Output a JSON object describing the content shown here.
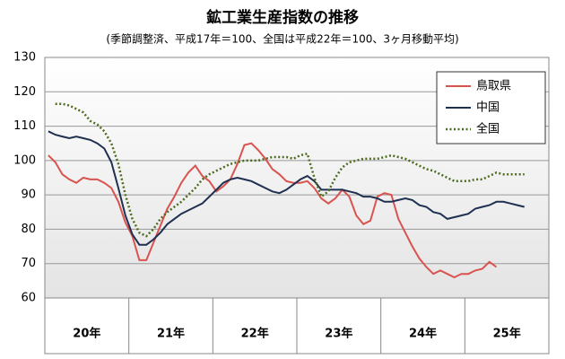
{
  "chart_data": {
    "type": "line",
    "title": "鉱工業生産指数の推移",
    "subtitle": "(季節調整済、平成17年＝100、全国は平成22年＝100、3ヶ月移動平均)",
    "categories": [
      null,
      null,
      null,
      null,
      null,
      "20年",
      null,
      null,
      null,
      null,
      null,
      null,
      null,
      null,
      null,
      null,
      null,
      "21年",
      null,
      null,
      null,
      null,
      null,
      null,
      null,
      null,
      null,
      null,
      null,
      "22年",
      null,
      null,
      null,
      null,
      null,
      null,
      null,
      null,
      null,
      null,
      null,
      "23年",
      null,
      null,
      null,
      null,
      null,
      null,
      null,
      null,
      null,
      null,
      null,
      "24年",
      null,
      null,
      null,
      null,
      null,
      null,
      null,
      null,
      null,
      null,
      null,
      "25年",
      null,
      null,
      null
    ],
    "series": [
      {
        "name": "鳥取県",
        "color": "#d9534f",
        "style": "solid",
        "values": [
          101.5,
          99.5,
          96,
          94.5,
          93.5,
          95,
          94.5,
          94.5,
          93.5,
          92,
          88,
          82,
          78,
          71,
          71,
          76,
          81,
          86,
          89.5,
          93.5,
          96.5,
          98.5,
          95.5,
          94,
          91,
          92.5,
          94.5,
          99,
          104.5,
          105,
          103,
          100.5,
          97.5,
          96,
          94,
          93.5,
          93.5,
          94,
          92,
          89,
          87.5,
          89,
          91.5,
          89.5,
          84,
          81.5,
          82.5,
          89.5,
          90.5,
          90,
          83,
          79,
          75,
          71.5,
          69,
          67,
          68,
          67,
          66,
          67,
          67,
          68,
          68.5,
          70.5,
          69,
          null,
          null,
          null,
          null
        ]
      },
      {
        "name": "中国",
        "color": "#1f3050",
        "style": "solid",
        "values": [
          108.5,
          107.5,
          107,
          106.5,
          107,
          106.5,
          106,
          105,
          103.5,
          99.5,
          92,
          84,
          78.5,
          75.5,
          75.5,
          77,
          79,
          81.5,
          83,
          84.5,
          85.5,
          86.5,
          87.5,
          89.5,
          91.5,
          93.5,
          94.5,
          95,
          94.5,
          94,
          93,
          92,
          91,
          90.5,
          91.5,
          93,
          94.5,
          95.5,
          94,
          91.5,
          91.5,
          91.5,
          91.5,
          91,
          90.5,
          89.5,
          89.5,
          89,
          88,
          88,
          88.5,
          89,
          88.5,
          87,
          86.5,
          85,
          84.5,
          83,
          83.5,
          84,
          84.5,
          86,
          86.5,
          87,
          88,
          88,
          87.5,
          87,
          86.5
        ]
      },
      {
        "name": "全国",
        "color": "#4d6b1e",
        "style": "dotted",
        "values": [
          null,
          116.5,
          116.5,
          116,
          115,
          114,
          111.5,
          110.5,
          108.5,
          105,
          99,
          90,
          83,
          79,
          78,
          80,
          83,
          85,
          86.5,
          88,
          90,
          92,
          94.5,
          96,
          97,
          98,
          99,
          99.5,
          100,
          100,
          100,
          100.5,
          101,
          101,
          101,
          100.5,
          101.5,
          102,
          95,
          89.5,
          91,
          95,
          98,
          99.5,
          100,
          100.5,
          100.5,
          100.5,
          101,
          101.5,
          101,
          100.5,
          99.5,
          98.5,
          97.5,
          97,
          96,
          95,
          94,
          94,
          94,
          94.5,
          94.5,
          95.5,
          96.5,
          96,
          96,
          96,
          96
        ]
      }
    ],
    "ylim": [
      60,
      130
    ],
    "yticks": [
      60,
      70,
      80,
      90,
      100,
      110,
      120,
      130
    ],
    "grid": true,
    "legend": "top-right"
  }
}
